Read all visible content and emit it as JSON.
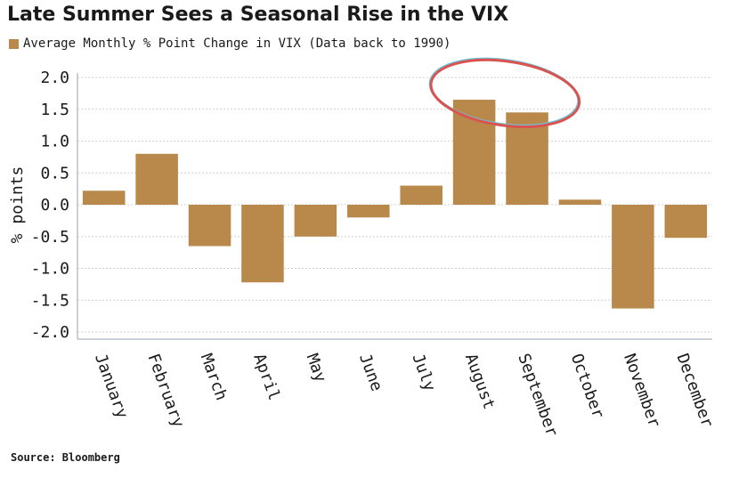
{
  "title": "Late Summer Sees a Seasonal Rise in the VIX",
  "source": "Source: Bloomberg",
  "colors": {
    "bar": "#b8894a",
    "grid": "#d0d0d0",
    "axis": "#9aa0b0",
    "highlight_ring": "#d9534f",
    "highlight_ring_inner": "#6fc3df"
  },
  "chart_data": {
    "type": "bar",
    "title": "Late Summer Sees a Seasonal Rise in the VIX",
    "categories": [
      "January",
      "February",
      "March",
      "April",
      "May",
      "June",
      "July",
      "August",
      "September",
      "October",
      "November",
      "December"
    ],
    "series": [
      {
        "name": "Average Monthly % Point Change in VIX (Data back to 1990)",
        "values": [
          0.22,
          0.8,
          -0.65,
          -1.22,
          -0.5,
          -0.2,
          0.3,
          1.65,
          1.45,
          0.08,
          -1.63,
          -0.52
        ]
      }
    ],
    "ylabel": "% points",
    "xlabel": "",
    "ylim": [
      -2.0,
      2.0
    ],
    "yticks": [
      "2.0",
      "1.5",
      "1.0",
      "0.5",
      "0.0",
      "-0.5",
      "-1.0",
      "-1.5",
      "-2.0"
    ],
    "grid": true,
    "legend_position": "top-left",
    "annotation": "ellipse highlighting August and September"
  }
}
